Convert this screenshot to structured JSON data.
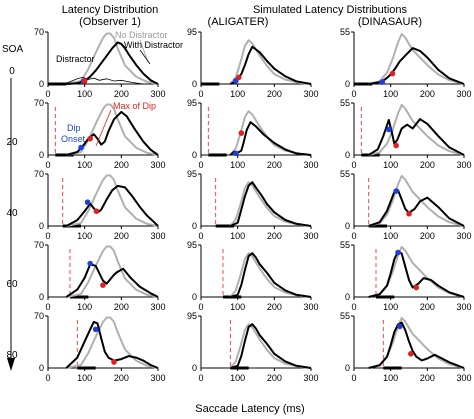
{
  "titles": {
    "left_line1": "Latency Distribution",
    "left_line2": "(Observer 1)",
    "right_line1": "Simulated Latency Distributions",
    "mid": "(ALIGATER)",
    "right": "(DINASAUR)"
  },
  "xlabel": "Saccade Latency (ms)",
  "soa_label": "SOA",
  "soa_values": [
    "0",
    "20",
    "40",
    "60",
    "80"
  ],
  "x_ticks": [
    "0",
    "100",
    "200",
    "300"
  ],
  "y_tops": [
    "70",
    "95",
    "55"
  ],
  "y_zero": "0",
  "annotations": {
    "distractor": "Distractor",
    "no_distractor": "No Distractor",
    "with_distractor": "With Distractor",
    "max_of_dip": "Max of Dip",
    "dip_onset_line1": "Dip",
    "dip_onset_line2": "Onset"
  },
  "colors": {
    "no_distractor": "#b0b0b0",
    "with_distractor": "#000000",
    "dip_onset_marker": "#1f3fdc",
    "max_dip_marker": "#e02020",
    "soa_line": "#ff3030"
  },
  "chart_data": {
    "type": "line",
    "x_range": [
      0,
      300
    ],
    "x_unit": "ms",
    "columns": [
      {
        "name": "Observer 1",
        "ylim": [
          0,
          70
        ]
      },
      {
        "name": "ALIGATER",
        "ylim": [
          0,
          95
        ]
      },
      {
        "name": "DINASAUR",
        "ylim": [
          0,
          55
        ]
      }
    ],
    "rows_soa": [
      0,
      20,
      40,
      60,
      80
    ],
    "no_distractor_curves": [
      {
        "x": [
          50,
          90,
          110,
          130,
          150,
          160,
          170,
          180,
          190,
          210,
          240,
          270,
          300
        ],
        "y": [
          0,
          4,
          20,
          42,
          62,
          68,
          68,
          62,
          48,
          25,
          10,
          3,
          0
        ]
      },
      {
        "x": [
          80,
          95,
          110,
          120,
          130,
          140,
          160,
          180,
          200,
          230,
          270,
          300
        ],
        "y": [
          0,
          12,
          45,
          70,
          80,
          74,
          52,
          33,
          18,
          8,
          2,
          0
        ]
      },
      {
        "x": [
          40,
          70,
          90,
          105,
          120,
          130,
          140,
          160,
          180,
          200,
          230,
          260,
          300
        ],
        "y": [
          0,
          3,
          12,
          26,
          44,
          53,
          49,
          36,
          28,
          20,
          10,
          4,
          0
        ]
      }
    ],
    "panels": [
      {
        "row": 0,
        "col": 0,
        "x": [
          50,
          80,
          100,
          115,
          130,
          145,
          160,
          175,
          190,
          200,
          210,
          220,
          240,
          260,
          280,
          300
        ],
        "y": [
          0,
          1,
          4,
          10,
          18,
          28,
          38,
          48,
          56,
          54,
          48,
          40,
          26,
          14,
          5,
          0
        ],
        "dip_onset": [
          97,
          4
        ],
        "max_dip": [
          100,
          4
        ]
      },
      {
        "row": 0,
        "col": 1,
        "x": [
          80,
          95,
          110,
          120,
          130,
          140,
          150,
          160,
          180,
          200,
          230,
          260,
          300
        ],
        "y": [
          0,
          5,
          18,
          35,
          55,
          68,
          63,
          58,
          42,
          28,
          14,
          5,
          0
        ],
        "dip_onset": [
          95,
          6
        ],
        "max_dip": [
          103,
          12
        ]
      },
      {
        "row": 0,
        "col": 2,
        "x": [
          40,
          70,
          85,
          95,
          110,
          125,
          140,
          160,
          180,
          200,
          230,
          260,
          300
        ],
        "y": [
          0,
          2,
          5,
          8,
          15,
          24,
          30,
          38,
          35,
          28,
          15,
          6,
          0
        ],
        "dip_onset": [
          77,
          2
        ],
        "max_dip": [
          105,
          11
        ]
      },
      {
        "row": 1,
        "col": 0,
        "x": [
          50,
          80,
          95,
          110,
          125,
          135,
          145,
          155,
          165,
          180,
          200,
          215,
          235,
          260,
          280,
          300
        ],
        "y": [
          0,
          4,
          12,
          22,
          28,
          22,
          14,
          18,
          32,
          48,
          58,
          52,
          36,
          18,
          7,
          0
        ],
        "dip_onset": [
          90,
          10
        ],
        "max_dip": [
          115,
          22
        ]
      },
      {
        "row": 1,
        "col": 1,
        "x": [
          80,
          90,
          100,
          110,
          115,
          125,
          135,
          150,
          170,
          200,
          230,
          260,
          300
        ],
        "y": [
          0,
          6,
          4,
          8,
          20,
          46,
          60,
          52,
          38,
          22,
          10,
          3,
          0
        ],
        "dip_onset": [
          95,
          3
        ],
        "max_dip": [
          110,
          40
        ]
      },
      {
        "row": 1,
        "col": 2,
        "x": [
          40,
          65,
          80,
          95,
          102,
          110,
          118,
          130,
          145,
          160,
          180,
          200,
          230,
          260,
          300
        ],
        "y": [
          0,
          6,
          20,
          37,
          26,
          12,
          16,
          28,
          32,
          28,
          38,
          33,
          20,
          8,
          0
        ],
        "dip_onset": [
          95,
          27
        ],
        "max_dip": [
          115,
          10
        ]
      },
      {
        "row": 2,
        "col": 0,
        "x": [
          50,
          80,
          100,
          115,
          125,
          135,
          145,
          160,
          175,
          190,
          210,
          230,
          250,
          270,
          290,
          300
        ],
        "y": [
          0,
          8,
          20,
          30,
          24,
          18,
          22,
          36,
          48,
          54,
          52,
          40,
          26,
          14,
          5,
          0
        ],
        "dip_onset": [
          108,
          32
        ],
        "max_dip": [
          132,
          20
        ]
      },
      {
        "row": 2,
        "col": 1,
        "x": [
          80,
          100,
          110,
          120,
          130,
          140,
          150,
          165,
          180,
          200,
          230,
          260,
          300
        ],
        "y": [
          0,
          6,
          30,
          55,
          74,
          80,
          70,
          56,
          40,
          25,
          11,
          4,
          0
        ],
        "dip_onset": null,
        "max_dip": null
      },
      {
        "row": 2,
        "col": 2,
        "x": [
          40,
          70,
          90,
          100,
          110,
          120,
          130,
          140,
          150,
          165,
          180,
          200,
          230,
          260,
          300
        ],
        "y": [
          0,
          4,
          16,
          26,
          36,
          38,
          28,
          18,
          14,
          18,
          26,
          30,
          20,
          8,
          0
        ],
        "dip_onset": [
          115,
          37
        ],
        "max_dip": [
          150,
          13
        ]
      },
      {
        "row": 3,
        "col": 0,
        "x": [
          50,
          80,
          100,
          115,
          130,
          140,
          150,
          160,
          170,
          180,
          190,
          205,
          225,
          250,
          280,
          300
        ],
        "y": [
          0,
          10,
          26,
          44,
          42,
          32,
          22,
          18,
          24,
          30,
          34,
          38,
          26,
          14,
          5,
          0
        ],
        "dip_onset": [
          115,
          45
        ],
        "max_dip": [
          150,
          16
        ]
      },
      {
        "row": 3,
        "col": 1,
        "x": [
          80,
          100,
          110,
          120,
          130,
          140,
          150,
          160,
          180,
          200,
          230,
          260,
          300
        ],
        "y": [
          0,
          4,
          22,
          50,
          75,
          80,
          72,
          60,
          44,
          26,
          12,
          4,
          0
        ],
        "dip_onset": null,
        "max_dip": null
      },
      {
        "row": 3,
        "col": 2,
        "x": [
          40,
          70,
          90,
          100,
          110,
          120,
          130,
          140,
          150,
          160,
          175,
          190,
          210,
          230,
          260,
          300
        ],
        "y": [
          0,
          3,
          12,
          25,
          40,
          48,
          46,
          32,
          18,
          10,
          14,
          20,
          18,
          12,
          5,
          0
        ],
        "dip_onset": [
          120,
          47
        ],
        "max_dip": [
          170,
          10
        ]
      },
      {
        "row": 4,
        "col": 0,
        "x": [
          50,
          80,
          100,
          115,
          125,
          135,
          145,
          155,
          165,
          180,
          200,
          220,
          240,
          260,
          280,
          300
        ],
        "y": [
          0,
          14,
          36,
          52,
          62,
          60,
          40,
          22,
          14,
          10,
          12,
          16,
          14,
          10,
          4,
          0
        ],
        "dip_onset": [
          130,
          52
        ],
        "max_dip": [
          180,
          8
        ]
      },
      {
        "row": 4,
        "col": 1,
        "x": [
          80,
          100,
          110,
          120,
          130,
          140,
          150,
          160,
          180,
          200,
          230,
          260,
          300
        ],
        "y": [
          0,
          4,
          22,
          50,
          75,
          80,
          72,
          60,
          44,
          26,
          12,
          4,
          0
        ],
        "dip_onset": null,
        "max_dip": null
      },
      {
        "row": 4,
        "col": 2,
        "x": [
          40,
          70,
          90,
          100,
          110,
          120,
          130,
          140,
          150,
          160,
          170,
          185,
          200,
          220,
          240,
          260,
          300
        ],
        "y": [
          0,
          3,
          12,
          24,
          38,
          46,
          48,
          40,
          28,
          18,
          12,
          8,
          10,
          14,
          10,
          6,
          0
        ],
        "dip_onset": [
          125,
          44
        ],
        "max_dip": [
          155,
          15
        ]
      }
    ]
  }
}
